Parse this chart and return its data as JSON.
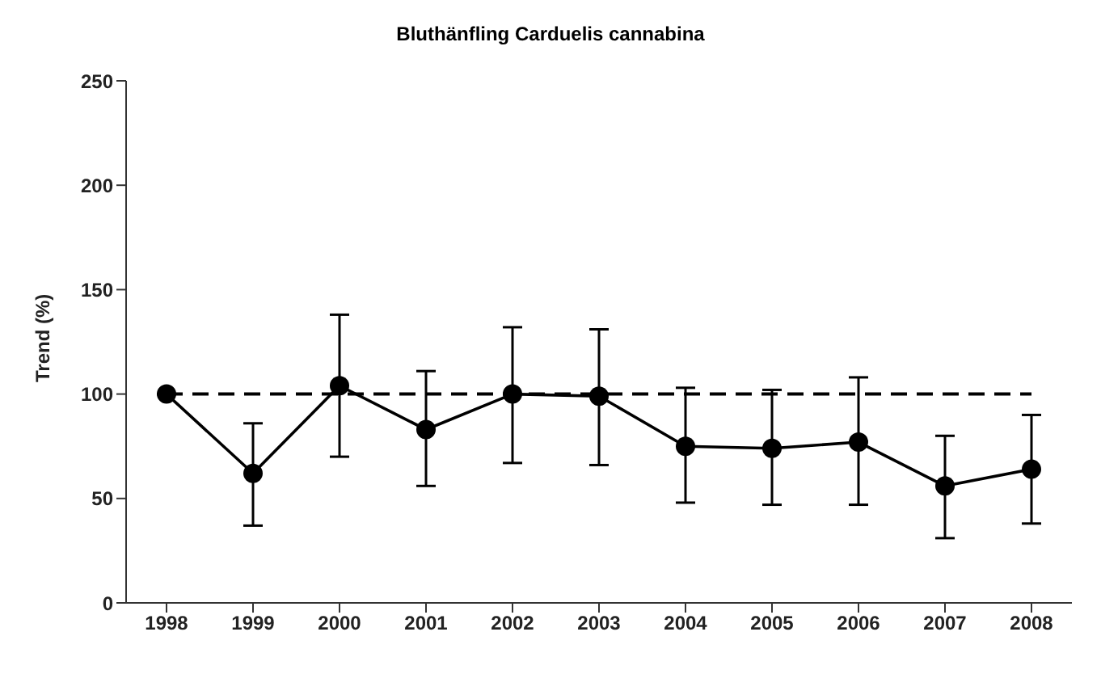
{
  "chart_data": {
    "type": "line",
    "title": "Bluthänfling Carduelis cannabina",
    "ylabel": "Trend (%)",
    "categories": [
      "1998",
      "1999",
      "2000",
      "2001",
      "2002",
      "2003",
      "2004",
      "2005",
      "2006",
      "2007",
      "2008"
    ],
    "series": [
      {
        "color": "#000000",
        "values": [
          100,
          62,
          104,
          83,
          100,
          99,
          75,
          74,
          77,
          56,
          64
        ],
        "errors": [
          null,
          [
            37,
            86
          ],
          [
            70,
            138
          ],
          [
            56,
            111
          ],
          [
            67,
            132
          ],
          [
            66,
            131
          ],
          [
            48,
            103
          ],
          [
            47,
            102
          ],
          [
            47,
            108
          ],
          [
            31,
            80
          ],
          [
            38,
            90
          ]
        ]
      }
    ],
    "ylim": [
      0,
      250
    ],
    "yticks": [
      0,
      50,
      100,
      150,
      200,
      250
    ],
    "grid": false,
    "legend": false,
    "marker": "circle",
    "line_style": "solid",
    "ref_lines": [
      {
        "axis": "y",
        "value": 100,
        "label": null,
        "color": "#000000",
        "line_style": "dashed"
      }
    ]
  }
}
